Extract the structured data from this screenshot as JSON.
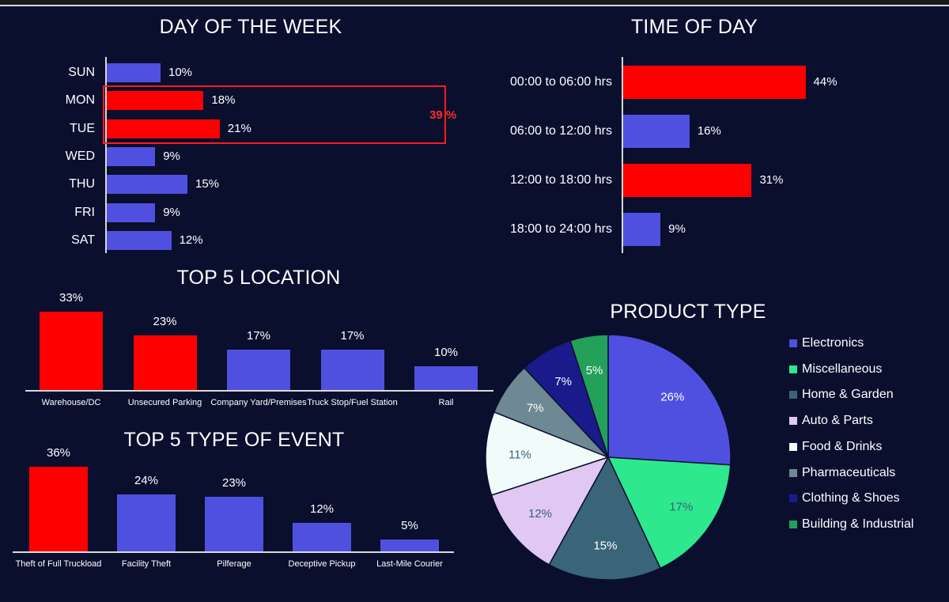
{
  "colors": {
    "background": "#0a0f2e",
    "blue": "#5050e0",
    "red": "#ff0000",
    "axis": "#d9d9d9",
    "text": "#ffffff"
  },
  "chart_data": [
    {
      "type": "bar",
      "orientation": "horizontal",
      "title": "DAY OF THE WEEK",
      "categories": [
        "SUN",
        "MON",
        "TUE",
        "WED",
        "THU",
        "FRI",
        "SAT"
      ],
      "values": [
        10,
        18,
        21,
        9,
        15,
        9,
        12
      ],
      "labels": [
        "10%",
        "18%",
        "21%",
        "9%",
        "15%",
        "9%",
        "12%"
      ],
      "highlighted": [
        "MON",
        "TUE"
      ],
      "annotation": "39 %"
    },
    {
      "type": "bar",
      "orientation": "horizontal",
      "title": "TIME OF DAY",
      "categories": [
        "00:00 to 06:00 hrs",
        "06:00 to 12:00 hrs",
        "12:00 to 18:00 hrs",
        "18:00 to 24:00 hrs"
      ],
      "values": [
        44,
        16,
        31,
        9
      ],
      "labels": [
        "44%",
        "16%",
        "31%",
        "9%"
      ],
      "highlighted": [
        "00:00 to 06:00 hrs",
        "12:00 to 18:00 hrs"
      ]
    },
    {
      "type": "bar",
      "orientation": "vertical",
      "title": "TOP 5 LOCATION",
      "categories": [
        "Warehouse/DC",
        "Unsecured Parking",
        "Company Yard/Premises",
        "Truck Stop/Fuel Station",
        "Rail"
      ],
      "values": [
        33,
        23,
        17,
        17,
        10
      ],
      "labels": [
        "33%",
        "23%",
        "17%",
        "17%",
        "10%"
      ],
      "highlighted": [
        "Warehouse/DC",
        "Unsecured Parking"
      ]
    },
    {
      "type": "bar",
      "orientation": "vertical",
      "title": "TOP 5 TYPE OF EVENT",
      "categories": [
        "Theft of Full Truckload",
        "Facility Theft",
        "Pilferage",
        "Deceptive Pickup",
        "Last-Mile Courier"
      ],
      "values": [
        36,
        24,
        23,
        12,
        5
      ],
      "labels": [
        "36%",
        "24%",
        "23%",
        "12%",
        "5%"
      ],
      "highlighted": [
        "Theft of Full Truckload"
      ]
    },
    {
      "type": "pie",
      "title": "PRODUCT TYPE",
      "categories": [
        "Electronics",
        "Miscellaneous",
        "Home & Garden",
        "Auto & Parts",
        "Food & Drinks",
        "Pharmaceuticals",
        "Clothing & Shoes",
        "Building & Industrial"
      ],
      "values": [
        26,
        17,
        15,
        12,
        11,
        7,
        7,
        5
      ],
      "labels": [
        "26%",
        "17%",
        "15%",
        "12%",
        "11%",
        "7%",
        "7%",
        "5%"
      ],
      "colors": [
        "#5050e0",
        "#2ee88e",
        "#3a6478",
        "#e0c8f2",
        "#f0fbfa",
        "#6e8894",
        "#1a1a8a",
        "#23a05a"
      ],
      "label_colors": [
        "#ffffff",
        "#3a6478",
        "#ffffff",
        "#3a6478",
        "#3a6478",
        "#ffffff",
        "#ffffff",
        "#ffffff"
      ],
      "legend_position": "right"
    }
  ]
}
